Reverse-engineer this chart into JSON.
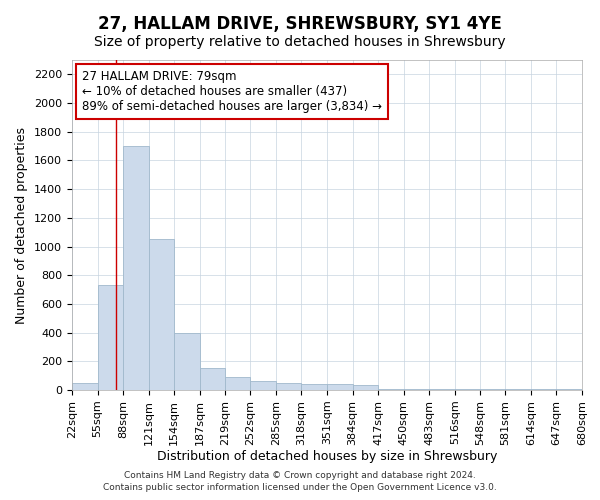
{
  "title": "27, HALLAM DRIVE, SHREWSBURY, SY1 4YE",
  "subtitle": "Size of property relative to detached houses in Shrewsbury",
  "xlabel": "Distribution of detached houses by size in Shrewsbury",
  "ylabel": "Number of detached properties",
  "footer_line1": "Contains HM Land Registry data © Crown copyright and database right 2024.",
  "footer_line2": "Contains public sector information licensed under the Open Government Licence v3.0.",
  "bin_edges": [
    22,
    55,
    88,
    121,
    154,
    187,
    219,
    252,
    285,
    318,
    351,
    384,
    417,
    450,
    483,
    516,
    548,
    581,
    614,
    647,
    680
  ],
  "bar_heights": [
    50,
    730,
    1700,
    1050,
    400,
    150,
    90,
    60,
    50,
    40,
    40,
    35,
    10,
    5,
    5,
    5,
    5,
    5,
    5,
    5
  ],
  "bar_color": "#ccdaeb",
  "bar_edge_color": "#a0b8cc",
  "property_size": 79,
  "annotation_title": "27 HALLAM DRIVE: 79sqm",
  "annotation_line2": "← 10% of detached houses are smaller (437)",
  "annotation_line3": "89% of semi-detached houses are larger (3,834) →",
  "annotation_box_color": "#ffffff",
  "annotation_border_color": "#cc0000",
  "vline_color": "#cc0000",
  "ylim": [
    0,
    2300
  ],
  "yticks": [
    0,
    200,
    400,
    600,
    800,
    1000,
    1200,
    1400,
    1600,
    1800,
    2000,
    2200
  ],
  "background_color": "#ffffff",
  "grid_color": "#c8d4e0",
  "title_fontsize": 12,
  "subtitle_fontsize": 10,
  "xlabel_fontsize": 9,
  "ylabel_fontsize": 9,
  "tick_fontsize": 8,
  "annotation_fontsize": 8.5,
  "footer_fontsize": 6.5
}
